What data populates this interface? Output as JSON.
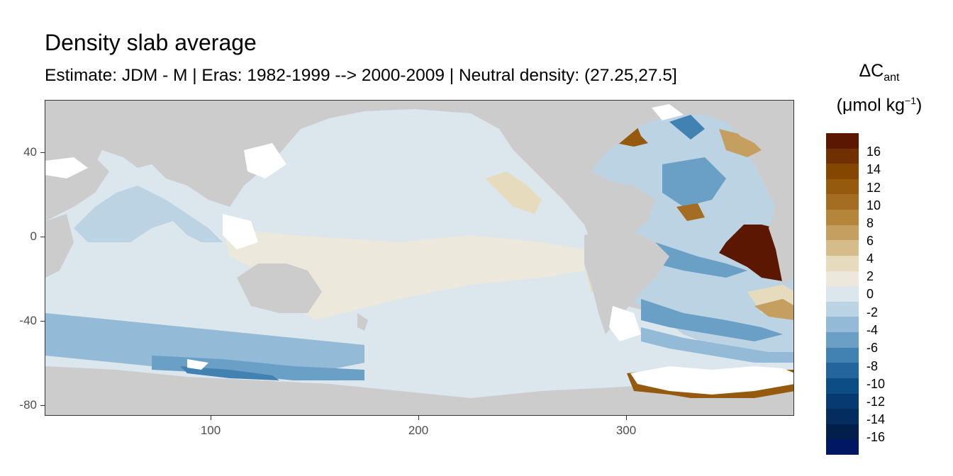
{
  "title": "Density slab average",
  "subtitle": "Estimate: JDM - M | Eras: 1982-1999 --> 2000-2009 | Neutral density: (27.25,27.5]",
  "legend": {
    "title_main": "ΔC",
    "title_sub": "ant",
    "unit_main": "(μmol kg",
    "unit_sup": "−1",
    "unit_close": ")",
    "labels": [
      "16",
      "14",
      "12",
      "10",
      "8",
      "6",
      "4",
      "2",
      "0",
      "-2",
      "-4",
      "-6",
      "-8",
      "-10",
      "-12",
      "-14",
      "-16"
    ],
    "colors": [
      "#5c1700",
      "#713000",
      "#854600",
      "#955a0d",
      "#a56d22",
      "#b5853a",
      "#c59f5f",
      "#d6bb8b",
      "#e7dbbd",
      "#ede8dc",
      "#dce6ed",
      "#bcd3e3",
      "#93bad6",
      "#6a9fc6",
      "#4282b3",
      "#23659c",
      "#0d4d86",
      "#063a70",
      "#042d5f",
      "#021f4c",
      "#011764"
    ]
  },
  "axes": {
    "x_ticks": [
      "100",
      "200",
      "300"
    ],
    "y_ticks": [
      "40",
      "0",
      "-40",
      "-80"
    ]
  },
  "colors": {
    "land": "#cccccc",
    "nodata": "#ffffff"
  },
  "map_data": {
    "type": "raster",
    "x_range": [
      20,
      380
    ],
    "y_range": [
      -85,
      65
    ],
    "x_tick_values": [
      100,
      200,
      300
    ],
    "y_tick_values": [
      40,
      0,
      -40,
      -80
    ]
  }
}
